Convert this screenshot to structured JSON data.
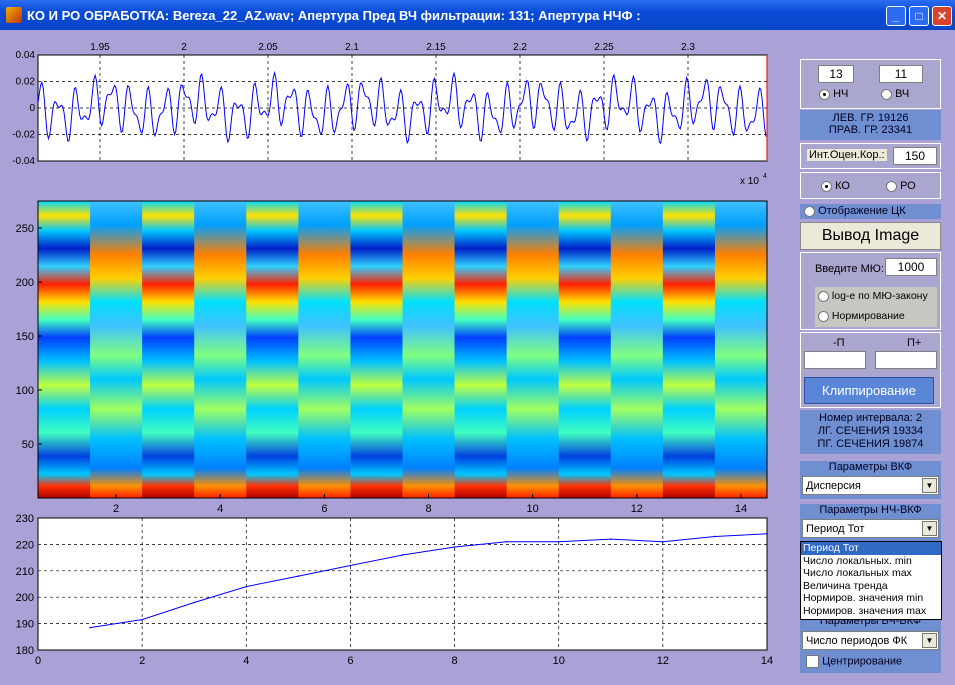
{
  "window": {
    "title": "КО И РО ОБРАБОТКА: Bereza_22_AZ.wav;  Апертура Пред ВЧ фильтрации: 131;  Апертура НЧФ :"
  },
  "top_plot": {
    "xticks": [
      "1.95",
      "2",
      "2.05",
      "2.1",
      "2.15",
      "2.2",
      "2.25",
      "2.3"
    ],
    "yticks": [
      "0.04",
      "0.02",
      "0",
      "-0.02",
      "-0.04"
    ],
    "exponent_label": "x 10",
    "exponent_power": "4"
  },
  "image_plot": {
    "xticks": [
      "2",
      "4",
      "6",
      "8",
      "10",
      "12",
      "14"
    ],
    "yticks": [
      "250",
      "200",
      "150",
      "100",
      "50"
    ]
  },
  "chart_data": {
    "type": "line",
    "x": [
      1,
      2,
      3,
      4,
      5,
      6,
      7,
      8,
      9,
      10,
      11,
      12,
      13,
      14
    ],
    "y": [
      188.5,
      191.5,
      198,
      204,
      208,
      212,
      216,
      219,
      221,
      221,
      222,
      221,
      223,
      224
    ],
    "xlim": [
      0,
      14
    ],
    "ylim": [
      180,
      230
    ],
    "xticks": [
      "0",
      "2",
      "4",
      "6",
      "8",
      "10",
      "12",
      "14"
    ],
    "yticks": [
      "230",
      "220",
      "210",
      "200",
      "190",
      "180"
    ],
    "grid": true,
    "color": "#0000ff"
  },
  "controls": {
    "lf_value": "13",
    "hf_value": "11",
    "lf_label": "НЧ",
    "hf_label": "ВЧ",
    "left_border": "ЛЕВ. ГР.  19126",
    "right_border": "ПРАВ. ГР.  23341",
    "corr_label": "Инт.Оцен.Кор.:",
    "corr_value": "150",
    "ko_label": "КО",
    "ro_label": "РО",
    "tsk_display": "Отображение ЦК",
    "output_image": "Вывод Image",
    "mu_label": "Введите МЮ:",
    "mu_value": "1000",
    "log_label": "log-е по МЮ-закону",
    "norm_label": "Нормирование",
    "p_minus": "-П",
    "p_plus": "П+",
    "clip_button": "Клиппирование",
    "interval_no": "Номер интервала: 2",
    "lg_section": "ЛГ. СЕЧЕНИЯ 19334",
    "pg_section": "ПГ. СЕЧЕНИЯ 19874",
    "vkf_params": "Параметры ВКФ",
    "vkf_select": "Дисперсия",
    "lfvkf_params": "Параметры НЧ-ВКФ",
    "lfvkf_select": "Период Тот",
    "lfvkf_options": [
      "Период Тот",
      "Число локальных. min",
      "Число локальных max",
      "Величина тренда",
      "Нормиров. значения min",
      "Нормиров. значения max"
    ],
    "hfvkf_params": "Параметры ВЧ-ВКФ",
    "hfvkf_select": "Число периодов ФК",
    "centering": "Центрирование"
  },
  "colors": {
    "figure_bg": "#aaa2d6",
    "info_panel": "#6f8fd0",
    "signal": "#0000ff"
  }
}
